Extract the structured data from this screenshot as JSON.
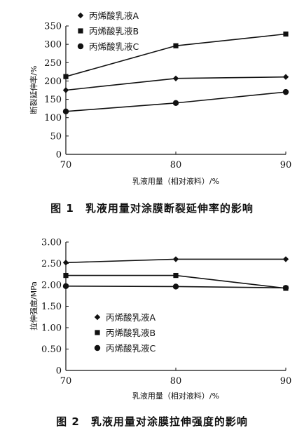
{
  "chart_data": [
    {
      "type": "line",
      "caption": "图 1　乳液用量对涂膜断裂延伸率的影响",
      "ylabel": "断裂延伸率/%",
      "xlabel": "乳液用量（相对液料）/%",
      "x": [
        70,
        80,
        90
      ],
      "xticks": [
        "70",
        "80",
        "90"
      ],
      "ylim": [
        0,
        350
      ],
      "yticks": [
        "0",
        "50",
        "100",
        "150",
        "200",
        "250",
        "300",
        "350"
      ],
      "legend_position": "top-left",
      "series": [
        {
          "name": "丙烯酸乳液A",
          "marker": "diamond",
          "values": [
            175,
            207,
            211
          ]
        },
        {
          "name": "丙烯酸乳液B",
          "marker": "square",
          "values": [
            212,
            296,
            328
          ]
        },
        {
          "name": "丙烯酸乳液C",
          "marker": "circle",
          "values": [
            117,
            140,
            170
          ]
        }
      ]
    },
    {
      "type": "line",
      "caption": "图 2　乳液用量对涂膜拉伸强度的影响",
      "ylabel": "拉伸强度/MPa",
      "xlabel": "乳液用量（相对液料）/%",
      "x": [
        70,
        80,
        90
      ],
      "xticks": [
        "70",
        "80",
        "90"
      ],
      "ylim": [
        0,
        3
      ],
      "yticks": [
        "0",
        "0.50",
        "1.00",
        "1.50",
        "2.00",
        "2.50",
        "3.00"
      ],
      "legend_position": "middle-left",
      "series": [
        {
          "name": "丙烯酸乳液A",
          "marker": "diamond",
          "values": [
            2.52,
            2.6,
            2.6
          ]
        },
        {
          "name": "丙烯酸乳液B",
          "marker": "square",
          "values": [
            2.22,
            2.22,
            1.92
          ]
        },
        {
          "name": "丙烯酸乳液C",
          "marker": "circle",
          "values": [
            1.97,
            1.96,
            1.93
          ]
        }
      ]
    }
  ]
}
